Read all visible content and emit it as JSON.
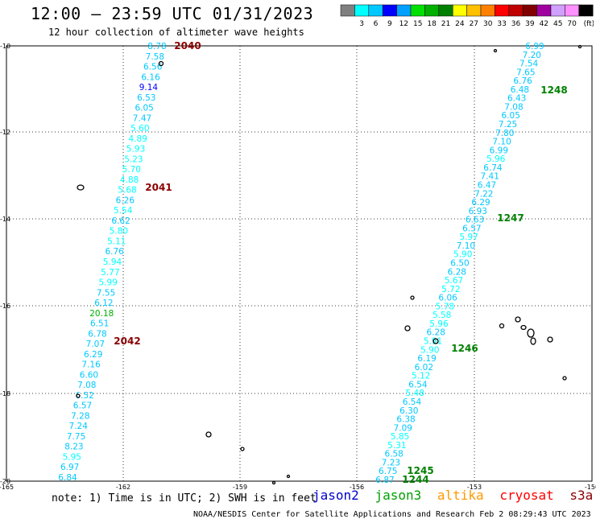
{
  "title": "12:00 – 23:59 UTC 01/31/2023",
  "subtitle": "12 hour collection of altimeter wave heights",
  "colorbar": {
    "unit": "(ft)",
    "levels": [
      "",
      "3",
      "6",
      "9",
      "12",
      "15",
      "18",
      "21",
      "24",
      "27",
      "30",
      "33",
      "36",
      "39",
      "42",
      "45",
      "70"
    ],
    "colors": [
      "#808080",
      "#00ffff",
      "#00c8ff",
      "#0000ff",
      "#00a0ff",
      "#00e000",
      "#00b000",
      "#008000",
      "#ffff00",
      "#ffc000",
      "#ff8000",
      "#ff0000",
      "#c00000",
      "#800000",
      "#a000a0",
      "#d0a0ff",
      "#ff90ff",
      "#000000"
    ]
  },
  "axes": {
    "lat_labels": [
      "-10",
      "-12",
      "-14",
      "-16",
      "-18",
      "-20"
    ],
    "lon_labels": [
      "-165",
      "-162",
      "-159",
      "-156",
      "-153",
      "-150"
    ]
  },
  "tracks": {
    "west": [
      "8.78",
      "7.58",
      "6.56",
      "6.16",
      "9.14",
      "6.53",
      "6.05",
      "7.47",
      "5.60",
      "4.89",
      "5.93",
      "5.23",
      "5.70",
      "4.88",
      "5.68",
      "6.26",
      "5.54",
      "6.62",
      "5.80",
      "5.11",
      "6.76",
      "5.94",
      "5.77",
      "5.99",
      "7.55",
      "6.12",
      "20.18",
      "6.51",
      "6.78",
      "7.07",
      "6.29",
      "7.16",
      "6.60",
      "7.08",
      "6.52",
      "6.57",
      "7.28",
      "7.24",
      "7.75",
      "8.23",
      "5.95",
      "6.97",
      "6.84"
    ],
    "east": [
      "6.99",
      "7.20",
      "7.54",
      "7.65",
      "6.76",
      "6.48",
      "6.43",
      "7.08",
      "6.05",
      "7.25",
      "7.80",
      "7.10",
      "6.99",
      "5.96",
      "6.74",
      "7.41",
      "6.47",
      "7.22",
      "6.29",
      "6.93",
      "6.63",
      "6.57",
      "5.97",
      "7.10",
      "5.90",
      "6.50",
      "6.28",
      "5.67",
      "5.72",
      "6.06",
      "5.78",
      "5.58",
      "5.96",
      "6.28",
      "5.91",
      "5.90",
      "6.19",
      "6.02",
      "5.12",
      "6.54",
      "5.48",
      "6.54",
      "6.30",
      "6.38",
      "7.09",
      "5.85",
      "5.31",
      "6.58",
      "7.23",
      "6.75",
      "6.87"
    ]
  },
  "time_labels": [
    {
      "text": "2040",
      "color": "#8b0000"
    },
    {
      "text": "2041",
      "color": "#8b0000"
    },
    {
      "text": "2042",
      "color": "#8b0000"
    },
    {
      "text": "1248",
      "color": "#008000"
    },
    {
      "text": "1247",
      "color": "#008000"
    },
    {
      "text": "1246",
      "color": "#008000"
    },
    {
      "text": "1245",
      "color": "#008000"
    },
    {
      "text": "1244",
      "color": "#008000"
    }
  ],
  "note": "note: 1) Time is in UTC; 2) SWH is in feet",
  "satellites": [
    {
      "name": "jason2",
      "color": "#0000cc"
    },
    {
      "name": "jason3",
      "color": "#00a000"
    },
    {
      "name": "altika",
      "color": "#ff9900"
    },
    {
      "name": "cryosat",
      "color": "#ff0000"
    },
    {
      "name": "s3a",
      "color": "#8b0000"
    }
  ],
  "credit": "NOAA/NESDIS Center for Satellite Applications and Research   Feb  2 08:29:43 UTC 2023"
}
